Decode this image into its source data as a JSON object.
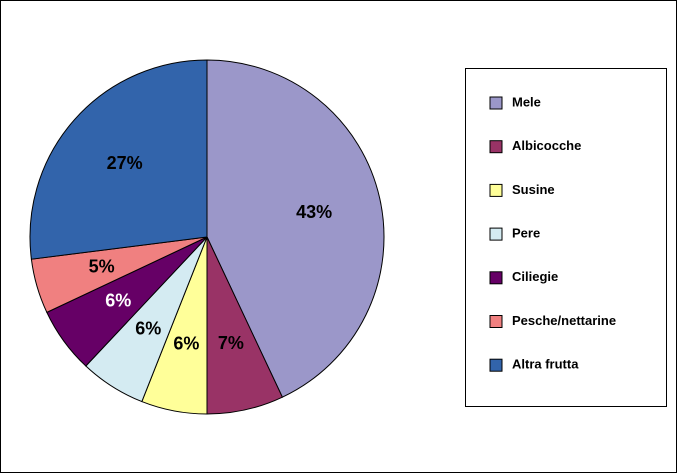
{
  "chart_data": {
    "type": "pie",
    "categories": [
      "Mele",
      "Albicocche",
      "Susine",
      "Pere",
      "Ciliegie",
      "Pesche/nettarine",
      "Altra frutta"
    ],
    "values": [
      43,
      7,
      6,
      6,
      6,
      5,
      27
    ],
    "value_labels": [
      "43%",
      "7%",
      "6%",
      "6%",
      "6%",
      "5%",
      "27%"
    ],
    "colors": [
      "#9b97c9",
      "#993366",
      "#ffff99",
      "#d4ebf2",
      "#660066",
      "#f08080",
      "#3264ab"
    ],
    "legend": "right"
  }
}
